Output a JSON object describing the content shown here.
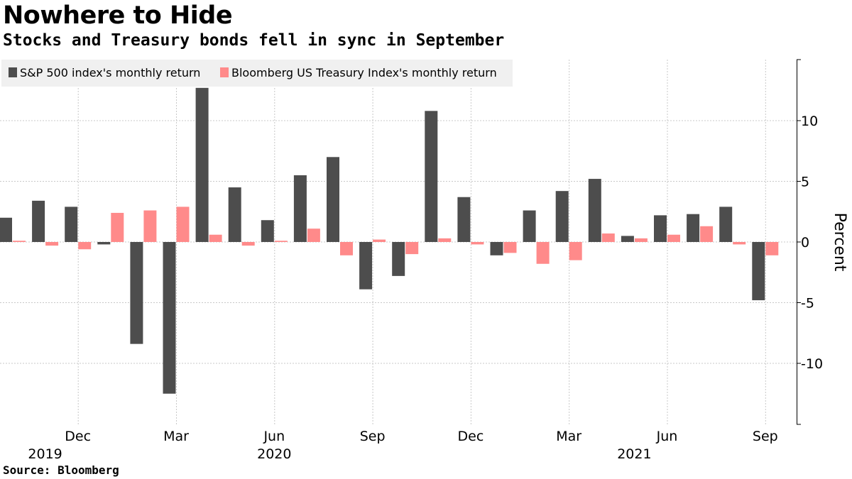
{
  "title": "Nowhere to Hide",
  "subtitle": "Stocks and Treasury bonds fell in sync in September",
  "source": "Source: Bloomberg",
  "colors": {
    "sp500": "#4d4d4d",
    "treasury": "#ff8a8a",
    "grid": "#c8c8c8",
    "legend_bg": "#f0f0f0"
  },
  "chart_data": {
    "type": "bar",
    "categories": [
      "Oct 2019",
      "Nov 2019",
      "Dec 2019",
      "Jan 2020",
      "Feb 2020",
      "Mar 2020",
      "Apr 2020",
      "May 2020",
      "Jun 2020",
      "Jul 2020",
      "Aug 2020",
      "Sep 2020",
      "Oct 2020",
      "Nov 2020",
      "Dec 2020",
      "Jan 2021",
      "Feb 2021",
      "Mar 2021",
      "Apr 2021",
      "May 2021",
      "Jun 2021",
      "Jul 2021",
      "Aug 2021",
      "Sep 2021"
    ],
    "series": [
      {
        "name": "S&P 500 index's monthly return",
        "values": [
          2.0,
          3.4,
          2.9,
          -0.2,
          -8.4,
          -12.5,
          12.7,
          4.5,
          1.8,
          5.5,
          7.0,
          -3.9,
          -2.8,
          10.8,
          3.7,
          -1.1,
          2.6,
          4.2,
          5.2,
          0.5,
          2.2,
          2.3,
          2.9,
          -4.8
        ]
      },
      {
        "name": "Bloomberg US Treasury Index's monthly return",
        "values": [
          0.1,
          -0.3,
          -0.6,
          2.4,
          2.6,
          2.9,
          0.6,
          -0.3,
          0.1,
          1.1,
          -1.1,
          0.2,
          -1.0,
          0.3,
          -0.2,
          -0.9,
          -1.8,
          -1.5,
          0.7,
          0.3,
          0.6,
          1.3,
          -0.2,
          -1.1
        ]
      }
    ],
    "ylabel": "Percent",
    "ylim": [
      -15,
      15
    ],
    "yticks": [
      10,
      5,
      0,
      -5,
      -10
    ],
    "ytick_labels": [
      "10",
      "5",
      "0",
      "-5",
      "-10"
    ],
    "xticks": [
      {
        "index": 2,
        "label": "Dec"
      },
      {
        "index": 5,
        "label": "Mar"
      },
      {
        "index": 8,
        "label": "Jun"
      },
      {
        "index": 11,
        "label": "Sep"
      },
      {
        "index": 14,
        "label": "Dec"
      },
      {
        "index": 17,
        "label": "Mar"
      },
      {
        "index": 20,
        "label": "Jun"
      },
      {
        "index": 23,
        "label": "Sep"
      }
    ],
    "year_labels": [
      {
        "index": 1,
        "label": "2019"
      },
      {
        "index": 8,
        "label": "2020"
      },
      {
        "index": 19,
        "label": "2021"
      }
    ],
    "grid": true,
    "legend_position": "top-left",
    "y_axis_position": "right"
  }
}
